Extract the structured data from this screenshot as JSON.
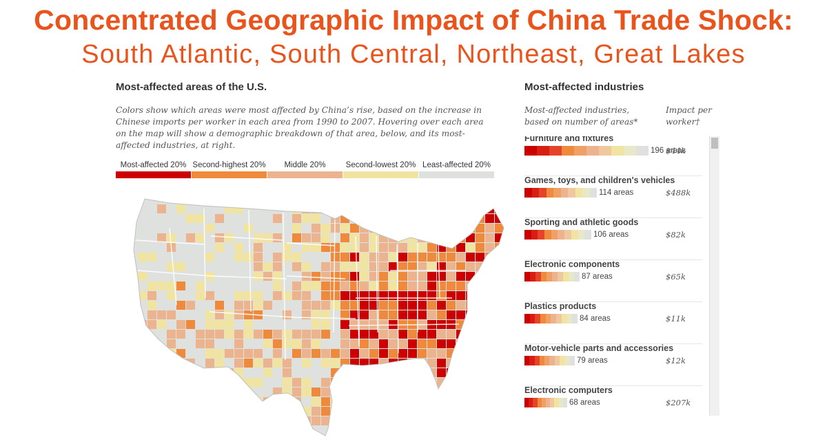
{
  "headline": {
    "line1": "Concentrated Geographic Impact of China Trade Shock:",
    "line2": "South Atlantic, South Central, Northeast, Great Lakes"
  },
  "map_panel": {
    "title": "Most-affected areas of the U.S.",
    "description": "Colors show which areas were most affected by China’s rise, based on the increase in Chinese imports per worker in each area from 1990 to 2007. Hovering over each area on the map will show a demographic breakdown of that area, below, and its most-affected industries, at right.",
    "legend": [
      {
        "label": "Most-affected 20%",
        "color": "#cc0000"
      },
      {
        "label": "Second-highest 20%",
        "color": "#ef8a3c"
      },
      {
        "label": "Middle 20%",
        "color": "#ebb48e"
      },
      {
        "label": "Second-lowest 20%",
        "color": "#f0e4a0"
      },
      {
        "label": "Least-affected 20%",
        "color": "#dfe1df"
      }
    ]
  },
  "industries_panel": {
    "title": "Most-affected industries",
    "col_industry": "Most-affected industries, based on number of areas*",
    "col_impact": "Impact per worker†",
    "items": [
      {
        "name": "Furniture and fixtures",
        "count": 196,
        "count_label": "196 areas",
        "impact": "$44k"
      },
      {
        "name": "Games, toys, and children's vehicles",
        "count": 114,
        "count_label": "114 areas",
        "impact": "$488k"
      },
      {
        "name": "Sporting and athletic goods",
        "count": 106,
        "count_label": "106 areas",
        "impact": "$82k"
      },
      {
        "name": "Electronic components",
        "count": 87,
        "count_label": "87 areas",
        "impact": "$65k"
      },
      {
        "name": "Plastics products",
        "count": 84,
        "count_label": "84 areas",
        "impact": "$11k"
      },
      {
        "name": "Motor-vehicle parts and accessories",
        "count": 79,
        "count_label": "79 areas",
        "impact": "$12k"
      },
      {
        "name": "Electronic computers",
        "count": 68,
        "count_label": "68 areas",
        "impact": "$207k"
      }
    ]
  }
}
